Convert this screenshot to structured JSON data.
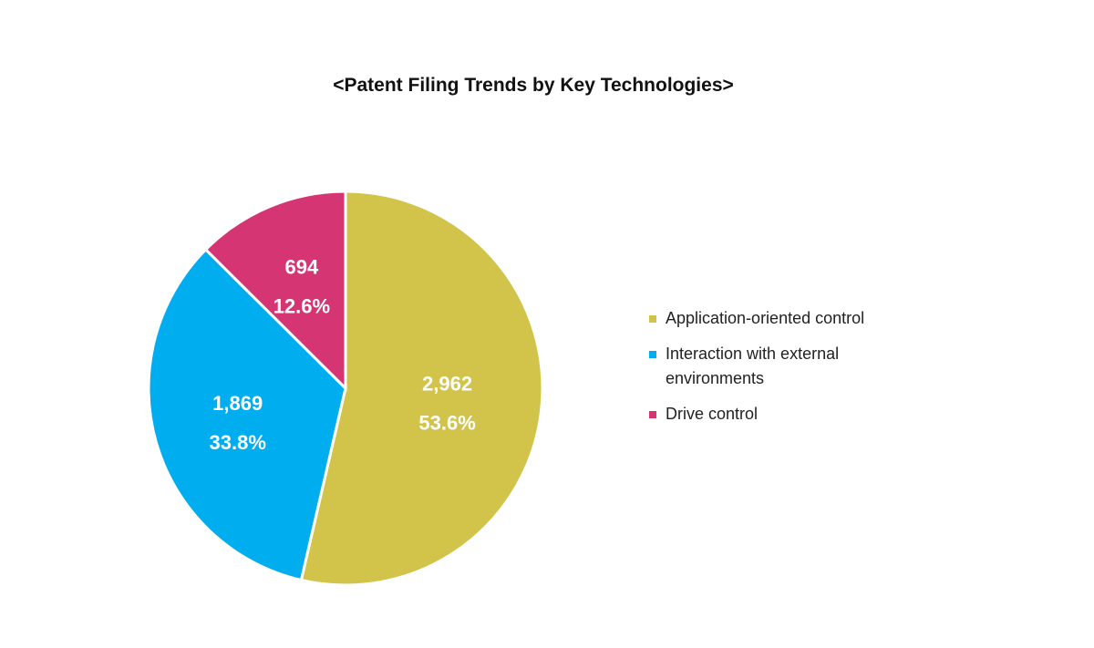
{
  "chart_data": {
    "type": "pie",
    "title": "<Patent Filing Trends by Key Technologies>",
    "categories": [
      "Application-oriented control",
      "Interaction with external environments",
      "Drive control"
    ],
    "values": [
      2962,
      1869,
      694
    ],
    "value_labels": [
      "2,962",
      "1,869",
      "694"
    ],
    "percent_labels": [
      "53.6%",
      "33.8%",
      "12.6%"
    ],
    "colors": [
      "#d2c44a",
      "#00aeef",
      "#d63574"
    ],
    "legend_position": "right",
    "start_angle": "12 o'clock",
    "direction": "clockwise"
  }
}
